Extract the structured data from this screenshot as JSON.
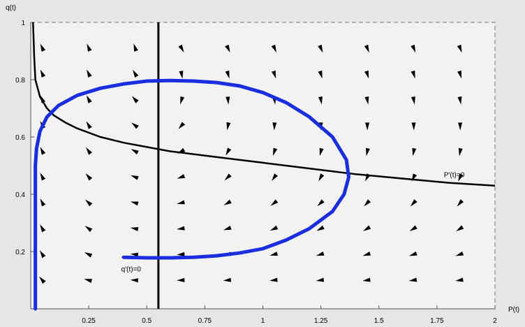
{
  "chart_data": {
    "type": "scatter",
    "title": "",
    "xlabel": "P(t)",
    "ylabel": "q(t)",
    "xlim": [
      0,
      2
    ],
    "ylim": [
      0,
      1
    ],
    "x_ticks": [
      {
        "value": 0.25,
        "label": "0.25"
      },
      {
        "value": 0.5,
        "label": "0.5"
      },
      {
        "value": 0.75,
        "label": "0.75"
      },
      {
        "value": 1,
        "label": "1"
      },
      {
        "value": 1.25,
        "label": "1.25"
      },
      {
        "value": 1.5,
        "label": "1.5"
      },
      {
        "value": 1.75,
        "label": "1.75"
      },
      {
        "value": 2,
        "label": "2"
      }
    ],
    "y_ticks": [
      {
        "value": 0.2,
        "label": "0.2"
      },
      {
        "value": 0.4,
        "label": "0.4"
      },
      {
        "value": 0.6,
        "label": "0.6"
      },
      {
        "value": 0.8,
        "label": "0.8"
      },
      {
        "value": 1,
        "label": "1"
      }
    ],
    "nullcline_q": {
      "label": "q'(t)=0",
      "x": 0.55,
      "label_at": [
        0.39,
        0.13
      ]
    },
    "nullcline_p": {
      "label": "P'(t)=0",
      "label_at": [
        1.78,
        0.46
      ],
      "points": [
        [
          0.01,
          1.0
        ],
        [
          0.015,
          0.88
        ],
        [
          0.02,
          0.8
        ],
        [
          0.04,
          0.74
        ],
        [
          0.07,
          0.7
        ],
        [
          0.1,
          0.675
        ],
        [
          0.15,
          0.65
        ],
        [
          0.2,
          0.63
        ],
        [
          0.3,
          0.6
        ],
        [
          0.4,
          0.58
        ],
        [
          0.5,
          0.565
        ],
        [
          0.6,
          0.55
        ],
        [
          0.8,
          0.53
        ],
        [
          1.0,
          0.51
        ],
        [
          1.2,
          0.49
        ],
        [
          1.4,
          0.47
        ],
        [
          1.6,
          0.455
        ],
        [
          1.8,
          0.44
        ],
        [
          2.0,
          0.43
        ]
      ]
    },
    "trajectory": {
      "color": "#1a2ee0",
      "points": [
        [
          0.4,
          0.18
        ],
        [
          0.5,
          0.178
        ],
        [
          0.6,
          0.178
        ],
        [
          0.7,
          0.18
        ],
        [
          0.8,
          0.185
        ],
        [
          0.9,
          0.195
        ],
        [
          1.0,
          0.21
        ],
        [
          1.1,
          0.24
        ],
        [
          1.2,
          0.28
        ],
        [
          1.3,
          0.34
        ],
        [
          1.35,
          0.4
        ],
        [
          1.37,
          0.46
        ],
        [
          1.36,
          0.52
        ],
        [
          1.3,
          0.6
        ],
        [
          1.2,
          0.67
        ],
        [
          1.1,
          0.72
        ],
        [
          1.0,
          0.755
        ],
        [
          0.9,
          0.778
        ],
        [
          0.8,
          0.79
        ],
        [
          0.7,
          0.795
        ],
        [
          0.6,
          0.797
        ],
        [
          0.5,
          0.795
        ],
        [
          0.4,
          0.785
        ],
        [
          0.3,
          0.77
        ],
        [
          0.2,
          0.745
        ],
        [
          0.12,
          0.71
        ],
        [
          0.07,
          0.67
        ],
        [
          0.04,
          0.62
        ],
        [
          0.025,
          0.56
        ],
        [
          0.02,
          0.5
        ],
        [
          0.02,
          0.4
        ],
        [
          0.02,
          0.3
        ],
        [
          0.02,
          0.2
        ],
        [
          0.02,
          0.1
        ],
        [
          0.02,
          0.0
        ]
      ]
    },
    "vector_field": {
      "x": [
        0.05,
        0.25,
        0.45,
        0.65,
        0.85,
        1.05,
        1.25,
        1.45,
        1.65,
        1.85
      ],
      "y": [
        0.1,
        0.19,
        0.28,
        0.37,
        0.46,
        0.55,
        0.64,
        0.73,
        0.82,
        0.91
      ],
      "note": "arrows are direction markers of the flow"
    },
    "grid": false,
    "legend": "none"
  }
}
